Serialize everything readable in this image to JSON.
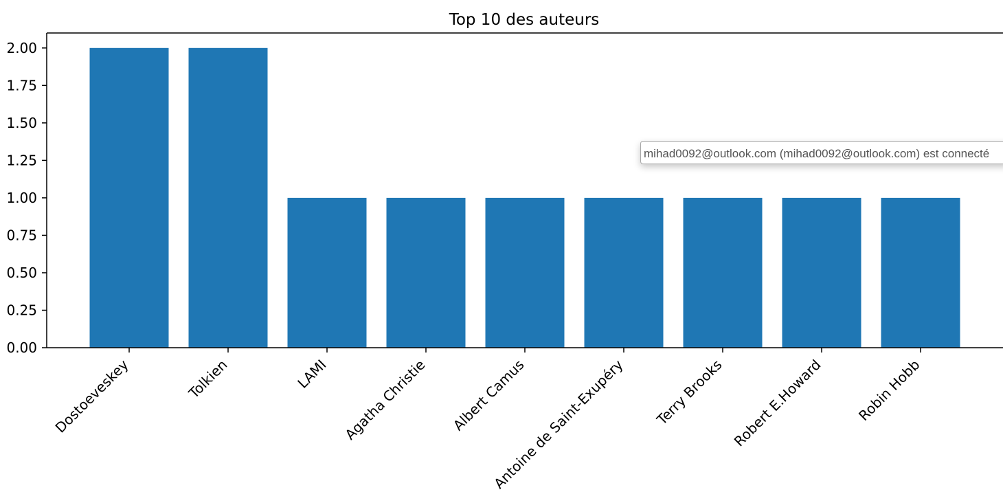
{
  "chart_data": {
    "type": "bar",
    "title": "Top 10 des auteurs",
    "xlabel": "",
    "ylabel": "",
    "categories": [
      "Dostoeveskey",
      "Tolkien",
      "LAMI",
      "Agatha Christie",
      "Albert Camus",
      "Antoine de Saint-Exupéry",
      "Terry Brooks",
      "Robert E.Howard",
      "Robin Hobb"
    ],
    "values": [
      2,
      2,
      1,
      1,
      1,
      1,
      1,
      1,
      1
    ],
    "ylim": [
      0,
      2.1
    ],
    "yticks": [
      "0.00",
      "0.25",
      "0.50",
      "0.75",
      "1.00",
      "1.25",
      "1.50",
      "1.75",
      "2.00"
    ],
    "bar_color": "#1f77b4",
    "grid": false,
    "legend": "none"
  },
  "tooltip": {
    "text": "mihad0092@outlook.com (mihad0092@outlook.com) est connecté"
  }
}
